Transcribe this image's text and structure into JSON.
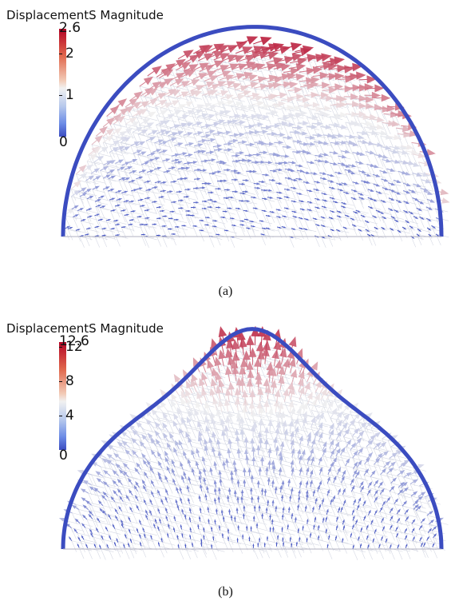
{
  "panels": [
    {
      "id": "a",
      "legend_title": "DisplacementS Magnitude",
      "ticks": [
        {
          "label": "2.6",
          "value": 2.6
        },
        {
          "label": "2",
          "value": 2
        },
        {
          "label": "1",
          "value": 1
        },
        {
          "label": "0",
          "value": 0
        }
      ],
      "range": [
        0,
        2.6
      ],
      "caption": "(a)",
      "colors": {
        "low": "#3b4cc0",
        "mid": "#f1f1f1",
        "high": "#b40426"
      }
    },
    {
      "id": "b",
      "legend_title": "DisplacementS Magnitude",
      "ticks": [
        {
          "label": "12.6",
          "value": 12.6
        },
        {
          "label": "12",
          "value": 12
        },
        {
          "label": "8",
          "value": 8
        },
        {
          "label": "4",
          "value": 4
        },
        {
          "label": "0",
          "value": 0
        }
      ],
      "range": [
        0,
        12.6
      ],
      "caption": "(b)",
      "colors": {
        "low": "#3b4cc0",
        "mid": "#f1f1f1",
        "high": "#b40426"
      }
    }
  ]
}
